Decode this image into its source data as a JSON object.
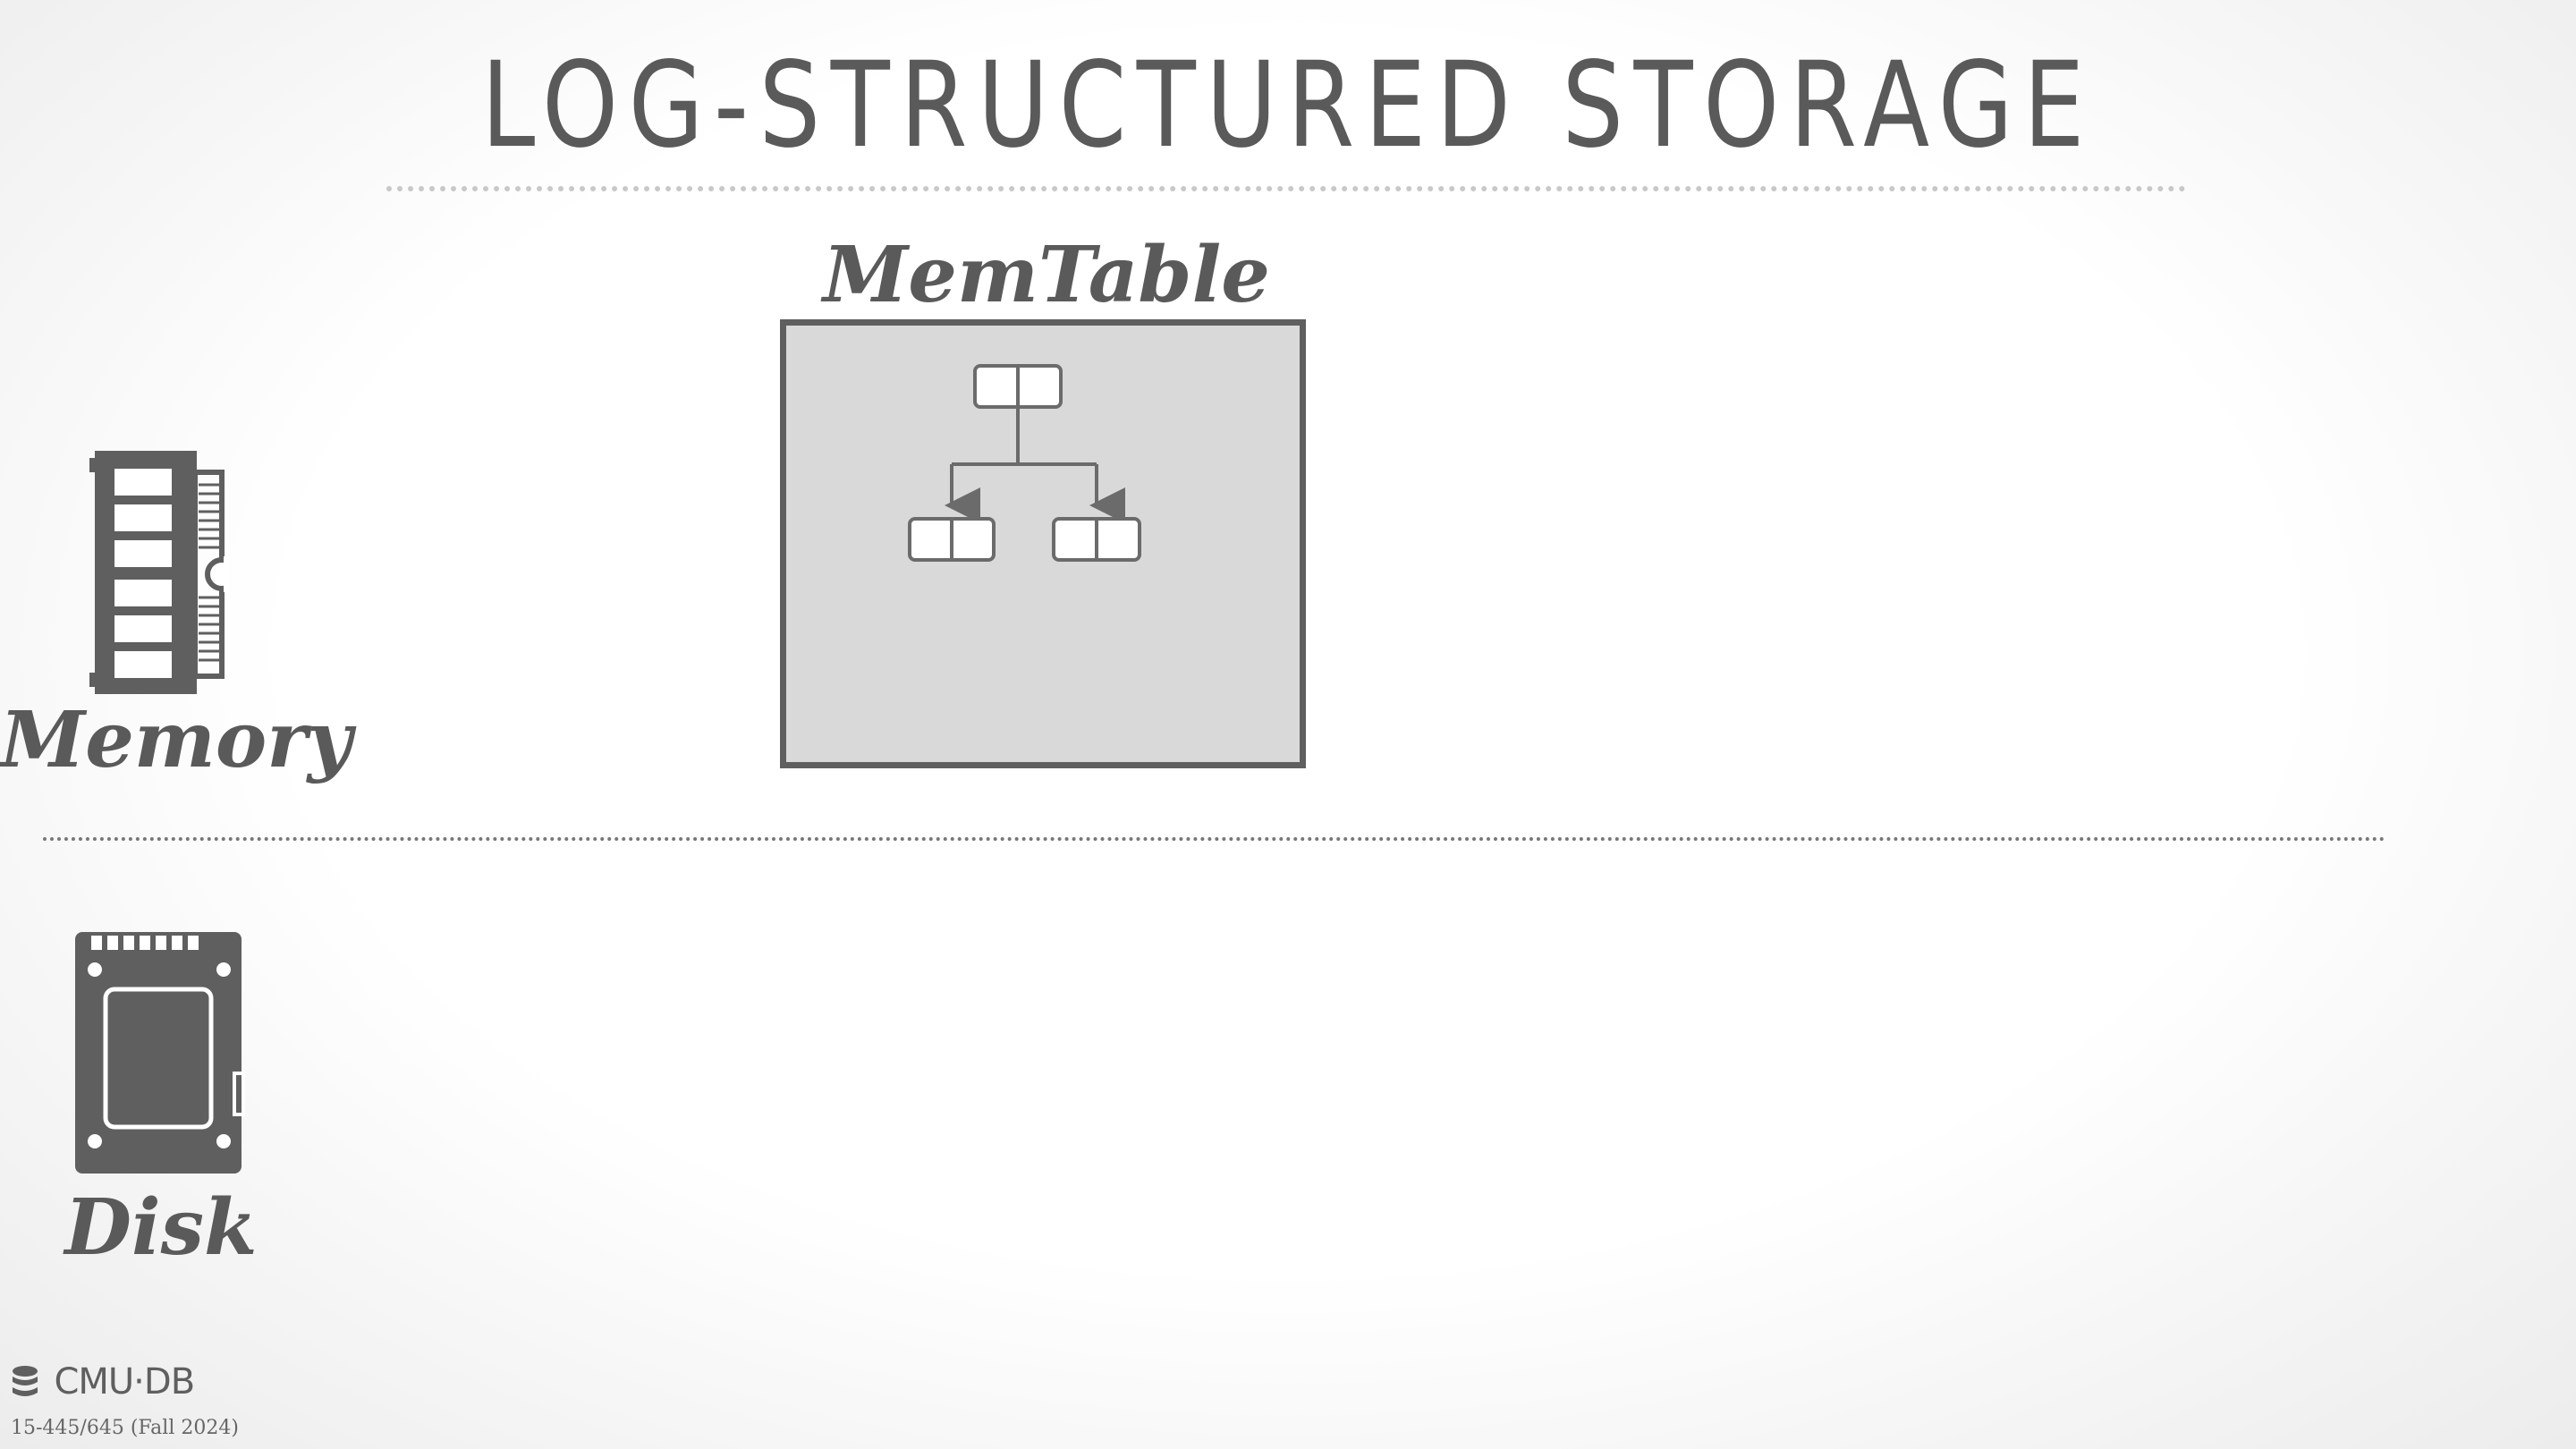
{
  "slide": {
    "title": "LOG-STRUCTURED STORAGE",
    "memtable_label": "MemTable",
    "memory_label": "Memory",
    "disk_label": "Disk"
  },
  "footer": {
    "logo_text": "CMU·DB",
    "course": "15-445/645 (Fall 2024)"
  },
  "icons": {
    "memory": "ram-icon",
    "disk": "ssd-icon",
    "logo": "database-icon"
  },
  "colors": {
    "primary_gray": "#5f5f5f",
    "memtable_fill": "#d9d9d9"
  }
}
